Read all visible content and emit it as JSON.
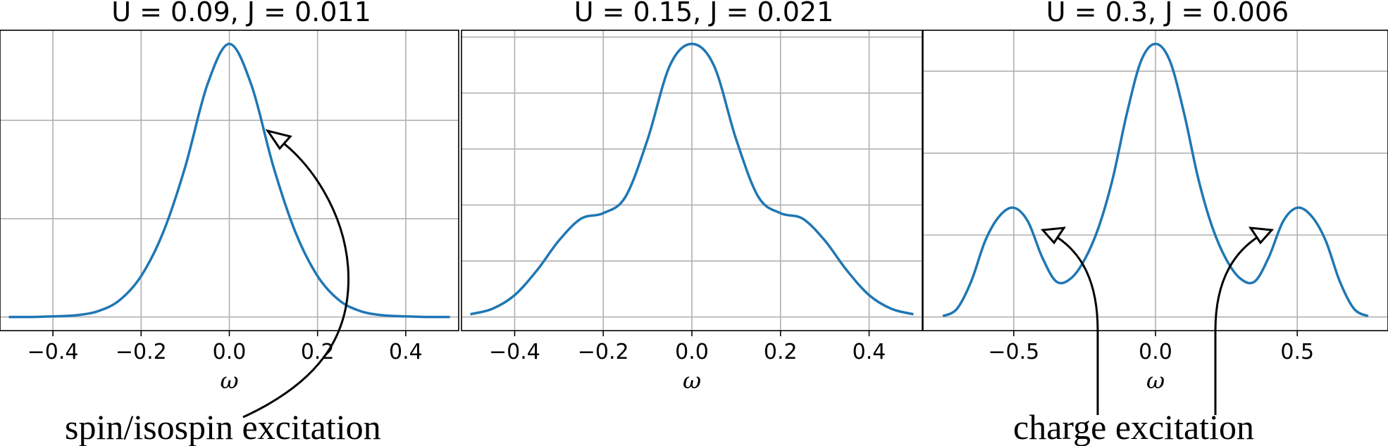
{
  "chart_data": [
    {
      "type": "line",
      "title": "U = 0.09, J = 0.011",
      "xlabel": "ω",
      "ylabel": "",
      "xlim": [
        -0.52,
        0.52
      ],
      "xticks": [
        -0.4,
        -0.2,
        0.0,
        0.2,
        0.4
      ],
      "xtick_labels": [
        "−0.4",
        "−0.2",
        "0.0",
        "0.2",
        "0.4"
      ],
      "ylim": [
        -0.05,
        1.05
      ],
      "yticks": [
        0.0,
        0.36,
        0.72
      ],
      "grid": true,
      "series": [
        {
          "x": [
            -0.5,
            -0.45,
            -0.4,
            -0.35,
            -0.3,
            -0.25,
            -0.2,
            -0.15,
            -0.1,
            -0.05,
            0.0,
            0.05,
            0.1,
            0.15,
            0.2,
            0.25,
            0.3,
            0.35,
            0.4,
            0.45,
            0.5
          ],
          "y": [
            0.0,
            0.0,
            0.002,
            0.006,
            0.02,
            0.06,
            0.15,
            0.31,
            0.55,
            0.85,
            1.0,
            0.85,
            0.55,
            0.31,
            0.15,
            0.06,
            0.02,
            0.006,
            0.002,
            0.0,
            0.0
          ]
        }
      ]
    },
    {
      "type": "line",
      "title": "U = 0.15, J = 0.021",
      "xlabel": "ω",
      "ylabel": "",
      "xlim": [
        -0.52,
        0.52
      ],
      "xticks": [
        -0.4,
        -0.2,
        0.0,
        0.2,
        0.4
      ],
      "xtick_labels": [
        "−0.4",
        "−0.2",
        "0.0",
        "0.2",
        "0.4"
      ],
      "ylim": [
        -0.05,
        1.05
      ],
      "yticks": [
        0.0,
        0.205,
        0.41,
        0.615,
        0.82,
        1.025
      ],
      "grid": true,
      "series": [
        {
          "x": [
            -0.5,
            -0.45,
            -0.4,
            -0.35,
            -0.3,
            -0.25,
            -0.2,
            -0.15,
            -0.1,
            -0.05,
            0.0,
            0.05,
            0.1,
            0.15,
            0.2,
            0.25,
            0.3,
            0.35,
            0.4,
            0.45,
            0.5
          ],
          "y": [
            0.01,
            0.03,
            0.08,
            0.17,
            0.28,
            0.36,
            0.38,
            0.44,
            0.65,
            0.92,
            1.0,
            0.92,
            0.65,
            0.44,
            0.38,
            0.36,
            0.28,
            0.17,
            0.08,
            0.03,
            0.01
          ]
        }
      ]
    },
    {
      "type": "line",
      "title": "U = 0.3, J = 0.006",
      "xlabel": "ω",
      "ylabel": "",
      "xlim": [
        -0.82,
        0.82
      ],
      "xticks": [
        -0.5,
        0.0,
        0.5
      ],
      "xtick_labels": [
        "−0.5",
        "0.0",
        "0.5"
      ],
      "ylim": [
        -0.05,
        1.05
      ],
      "yticks": [
        0.0,
        0.3,
        0.6,
        0.9
      ],
      "grid": true,
      "series": [
        {
          "x": [
            -0.75,
            -0.7,
            -0.65,
            -0.6,
            -0.55,
            -0.5,
            -0.45,
            -0.4,
            -0.35,
            -0.3,
            -0.25,
            -0.2,
            -0.15,
            -0.1,
            -0.05,
            0.0,
            0.05,
            0.1,
            0.15,
            0.2,
            0.25,
            0.3,
            0.35,
            0.4,
            0.45,
            0.5,
            0.55,
            0.6,
            0.65,
            0.7,
            0.75
          ],
          "y": [
            0.003,
            0.03,
            0.13,
            0.28,
            0.37,
            0.4,
            0.35,
            0.22,
            0.13,
            0.14,
            0.21,
            0.33,
            0.51,
            0.75,
            0.94,
            1.0,
            0.94,
            0.75,
            0.51,
            0.33,
            0.21,
            0.14,
            0.13,
            0.22,
            0.35,
            0.4,
            0.37,
            0.28,
            0.13,
            0.03,
            0.003
          ]
        }
      ]
    }
  ],
  "annotations": {
    "spin_label": "spin/isospin excitation",
    "charge_label": "charge excitation"
  },
  "colors": {
    "line": "#1f77b4",
    "grid": "#b0b0b0"
  }
}
